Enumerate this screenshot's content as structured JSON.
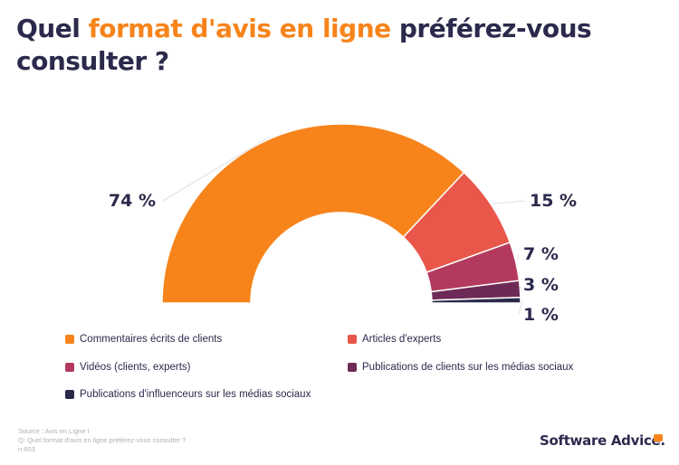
{
  "title": {
    "part1": "Quel ",
    "highlight": "format d'avis en ligne",
    "part2": " préférez-vous consulter ?"
  },
  "colors": {
    "title": "#2b2a4c",
    "accent": "#f7841b"
  },
  "chart_data": {
    "type": "pie",
    "style": "semi-donut",
    "title": "Quel format d'avis en ligne préférez-vous consulter ?",
    "categories": [
      "Commentaires écrits de clients",
      "Articles d'experts",
      "Vidéos (clients, experts)",
      "Publications de clients sur les médias sociaux",
      "Publications d'influenceurs sur les médias sociaux"
    ],
    "values": [
      74,
      15,
      7,
      3,
      1
    ],
    "value_labels": [
      "74 %",
      "15 %",
      "7 %",
      "3 %",
      "1 %"
    ],
    "colors": [
      "#f7841b",
      "#e8574a",
      "#b33a5e",
      "#6e2a56",
      "#2b2a4c"
    ],
    "legend_position": "bottom"
  },
  "footer": {
    "source": "Source : Avis en Ligne I",
    "question": "Q: Quel format d'avis en ligne préférez-vous consulter ?",
    "n": "n:603"
  },
  "brand": {
    "name": "Software Advice."
  }
}
